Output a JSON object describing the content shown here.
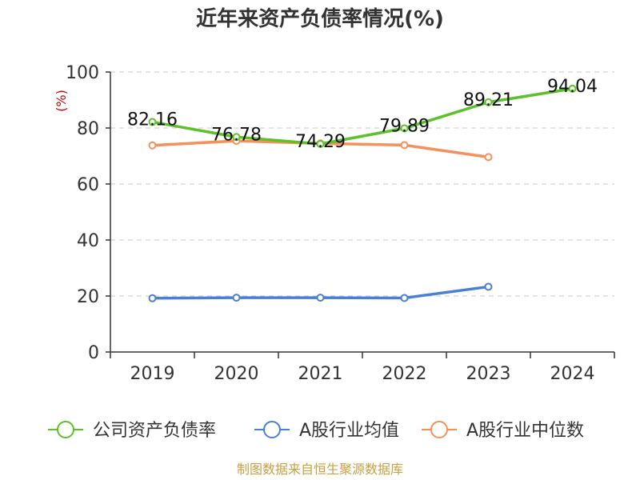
{
  "chart_data": {
    "type": "line",
    "title": "近年来资产负债率情况(%)",
    "ylabel": "(%)",
    "xlabel": "",
    "ylim": [
      0,
      100
    ],
    "yticks": [
      0,
      20,
      40,
      60,
      80,
      100
    ],
    "categories": [
      "2019",
      "2020",
      "2021",
      "2022",
      "2023",
      "2024"
    ],
    "grid": true,
    "legend_position": "bottom",
    "series": [
      {
        "name": "公司资产负债率",
        "color": "#5cc12a",
        "values": [
          82.16,
          76.78,
          74.29,
          79.89,
          89.21,
          94.04
        ],
        "labels": [
          "82.16",
          "76.78",
          "74.29",
          "79.89",
          "89.21",
          "94.04"
        ]
      },
      {
        "name": "A股行业均值",
        "color": "#4a7fd6",
        "values": [
          19.2,
          19.4,
          19.4,
          19.3,
          23.3,
          null
        ]
      },
      {
        "name": "A股行业中位数",
        "color": "#f5905a",
        "values": [
          73.8,
          75.4,
          74.5,
          73.9,
          69.6,
          null
        ]
      }
    ],
    "source": "制图数据来自恒生聚源数据库"
  }
}
